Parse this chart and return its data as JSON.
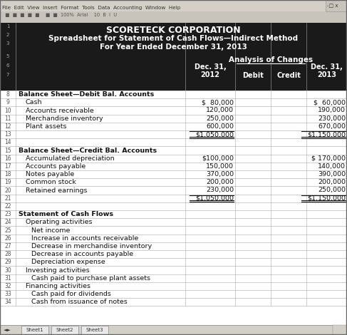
{
  "title1": "SCORETECK CORPORATION",
  "title2": "Spreadsheet for Statement of Cash Flows—Indirect Method",
  "title3": "For Year Ended December 31, 2013",
  "header_bg": "#1a1a1a",
  "toolbar_bg": "#e8e8e8",
  "grid_color": "#aaaaaa",
  "text_color": "#111111",
  "white": "#ffffff",
  "rows": [
    {
      "row": 1,
      "label": "",
      "bold": false,
      "indent": 0,
      "dec2012": "",
      "debit": "",
      "credit": "",
      "dec2013": "",
      "header_row": true
    },
    {
      "row": 2,
      "label": "",
      "bold": false,
      "indent": 0,
      "dec2012": "",
      "debit": "",
      "credit": "",
      "dec2013": "",
      "header_row": true
    },
    {
      "row": 3,
      "label": "",
      "bold": false,
      "indent": 0,
      "dec2012": "",
      "debit": "",
      "credit": "",
      "dec2013": "",
      "header_row": true
    },
    {
      "row": 5,
      "label": "",
      "bold": false,
      "indent": 0,
      "dec2012": "",
      "debit": "",
      "credit": "",
      "dec2013": "",
      "header_row": true
    },
    {
      "row": 6,
      "label": "",
      "bold": false,
      "indent": 0,
      "dec2012": "",
      "debit": "",
      "credit": "",
      "dec2013": "",
      "header_row": true
    },
    {
      "row": 7,
      "label": "",
      "bold": false,
      "indent": 0,
      "dec2012": "",
      "debit": "",
      "credit": "",
      "dec2013": "",
      "header_row": true
    },
    {
      "row": 8,
      "label": "Balance Sheet—Debit Bal. Accounts",
      "bold": true,
      "indent": 0,
      "dec2012": "",
      "debit": "",
      "credit": "",
      "dec2013": ""
    },
    {
      "row": 9,
      "label": "Cash",
      "bold": false,
      "indent": 1,
      "dec2012": "$  80,000",
      "debit": "",
      "credit": "",
      "dec2013": "$  60,000"
    },
    {
      "row": 10,
      "label": "Accounts receivable",
      "bold": false,
      "indent": 1,
      "dec2012": "120,000",
      "debit": "",
      "credit": "",
      "dec2013": "190,000"
    },
    {
      "row": 11,
      "label": "Merchandise inventory",
      "bold": false,
      "indent": 1,
      "dec2012": "250,000",
      "debit": "",
      "credit": "",
      "dec2013": "230,000"
    },
    {
      "row": 12,
      "label": "Plant assets",
      "bold": false,
      "indent": 1,
      "dec2012": "600,000",
      "debit": "",
      "credit": "",
      "dec2013": "670,000"
    },
    {
      "row": 13,
      "label": "",
      "bold": false,
      "indent": 0,
      "dec2012": "$1,050,000",
      "debit": "",
      "credit": "",
      "dec2013": "$1,150,000",
      "total": true
    },
    {
      "row": 14,
      "label": "",
      "bold": false,
      "indent": 0,
      "dec2012": "",
      "debit": "",
      "credit": "",
      "dec2013": ""
    },
    {
      "row": 15,
      "label": "Balance Sheet—Credit Bal. Accounts",
      "bold": true,
      "indent": 0,
      "dec2012": "",
      "debit": "",
      "credit": "",
      "dec2013": ""
    },
    {
      "row": 16,
      "label": "Accumulated depreciation",
      "bold": false,
      "indent": 1,
      "dec2012": "$100,000",
      "debit": "",
      "credit": "",
      "dec2013": "$ 170,000"
    },
    {
      "row": 17,
      "label": "Accounts payable",
      "bold": false,
      "indent": 1,
      "dec2012": "150,000",
      "debit": "",
      "credit": "",
      "dec2013": "140,000"
    },
    {
      "row": 18,
      "label": "Notes payable",
      "bold": false,
      "indent": 1,
      "dec2012": "370,000",
      "debit": "",
      "credit": "",
      "dec2013": "390,000"
    },
    {
      "row": 19,
      "label": "Common stock",
      "bold": false,
      "indent": 1,
      "dec2012": "200,000",
      "debit": "",
      "credit": "",
      "dec2013": "200,000"
    },
    {
      "row": 20,
      "label": "Retained earnings",
      "bold": false,
      "indent": 1,
      "dec2012": "230,000",
      "debit": "",
      "credit": "",
      "dec2013": "250,000"
    },
    {
      "row": 21,
      "label": "",
      "bold": false,
      "indent": 0,
      "dec2012": "$1,050,000",
      "debit": "",
      "credit": "",
      "dec2013": "$1,150,000",
      "total": true
    },
    {
      "row": 22,
      "label": "",
      "bold": false,
      "indent": 0,
      "dec2012": "",
      "debit": "",
      "credit": "",
      "dec2013": ""
    },
    {
      "row": 23,
      "label": "Statement of Cash Flows",
      "bold": true,
      "indent": 0,
      "dec2012": "",
      "debit": "",
      "credit": "",
      "dec2013": ""
    },
    {
      "row": 24,
      "label": "Operating activities",
      "bold": false,
      "indent": 1,
      "dec2012": "",
      "debit": "",
      "credit": "",
      "dec2013": ""
    },
    {
      "row": 25,
      "label": "Net income",
      "bold": false,
      "indent": 2,
      "dec2012": "",
      "debit": "",
      "credit": "",
      "dec2013": ""
    },
    {
      "row": 26,
      "label": "Increase in accounts receivable",
      "bold": false,
      "indent": 2,
      "dec2012": "",
      "debit": "",
      "credit": "",
      "dec2013": ""
    },
    {
      "row": 27,
      "label": "Decrease in merchandise inventory",
      "bold": false,
      "indent": 2,
      "dec2012": "",
      "debit": "",
      "credit": "",
      "dec2013": ""
    },
    {
      "row": 28,
      "label": "Decrease in accounts payable",
      "bold": false,
      "indent": 2,
      "dec2012": "",
      "debit": "",
      "credit": "",
      "dec2013": ""
    },
    {
      "row": 29,
      "label": "Depreciation expense",
      "bold": false,
      "indent": 2,
      "dec2012": "",
      "debit": "",
      "credit": "",
      "dec2013": ""
    },
    {
      "row": 30,
      "label": "Investing activities",
      "bold": false,
      "indent": 1,
      "dec2012": "",
      "debit": "",
      "credit": "",
      "dec2013": ""
    },
    {
      "row": 31,
      "label": "Cash paid to purchase plant assets",
      "bold": false,
      "indent": 2,
      "dec2012": "",
      "debit": "",
      "credit": "",
      "dec2013": ""
    },
    {
      "row": 32,
      "label": "Financing activities",
      "bold": false,
      "indent": 1,
      "dec2012": "",
      "debit": "",
      "credit": "",
      "dec2013": ""
    },
    {
      "row": 33,
      "label": "Cash paid for dividends",
      "bold": false,
      "indent": 2,
      "dec2012": "",
      "debit": "",
      "credit": "",
      "dec2013": ""
    },
    {
      "row": 34,
      "label": "Cash from issuance of notes",
      "bold": false,
      "indent": 2,
      "dec2012": "",
      "debit": "",
      "credit": "",
      "dec2013": ""
    }
  ],
  "fontsize": 6.8,
  "small_fontsize": 5.5
}
